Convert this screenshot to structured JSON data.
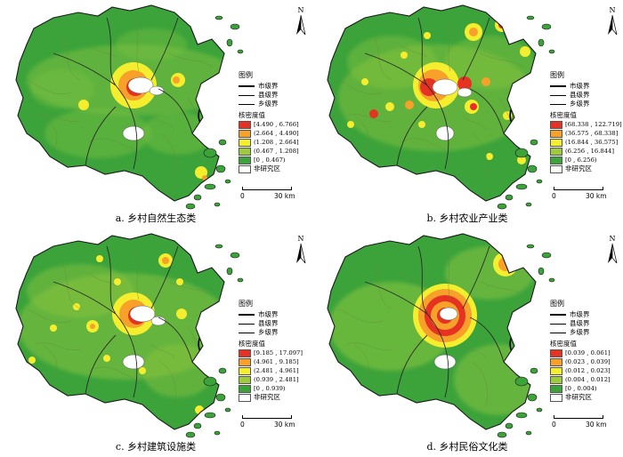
{
  "north_label": "N",
  "legend_common": {
    "title": "图例",
    "boundaries": [
      "市级界",
      "县级界",
      "乡级界"
    ],
    "density_title": "核密度值",
    "non_study": "非研究区",
    "scale_zero": "0",
    "scale_dist": "30 km"
  },
  "panels": [
    {
      "caption": "a.  乡村自然生态类",
      "classes": [
        "[4.490 , 6.766]",
        "(2.664 , 4.490]",
        "(1.208 , 2.664]",
        "(0.467 , 1.208]",
        "[0 , 0.467)"
      ],
      "colors": [
        "#e53222",
        "#f7a12a",
        "#f4ee2e",
        "#9dcb3d",
        "#3ba33a"
      ],
      "hotspots": "ecology"
    },
    {
      "caption": "b.  乡村农业产业类",
      "classes": [
        "[68.338 , 122.719]",
        "(36.575 , 68.338]",
        "(16.844 , 36.575]",
        "(6.256 , 16.844]",
        "[0 , 6.256)"
      ],
      "colors": [
        "#e53222",
        "#f7a12a",
        "#f4ee2e",
        "#9dcb3d",
        "#3ba33a"
      ],
      "hotspots": "agriculture"
    },
    {
      "caption": "c.  乡村建筑设施类",
      "classes": [
        "[9.185 , 17.097]",
        "(4.961 , 9.185]",
        "(2.481 , 4.961]",
        "(0.939 , 2.481]",
        "[0 , 0.939)"
      ],
      "colors": [
        "#e53222",
        "#f7a12a",
        "#f4ee2e",
        "#9dcb3d",
        "#3ba33a"
      ],
      "hotspots": "building"
    },
    {
      "caption": "d.  乡村民俗文化类",
      "classes": [
        "[0.039 , 0.061]",
        "(0.023 , 0.039]",
        "(0.012 , 0.023]",
        "(0.004 , 0.012]",
        "[0 , 0.004)"
      ],
      "colors": [
        "#e53222",
        "#f7a12a",
        "#f4ee2e",
        "#9dcb3d",
        "#3ba33a"
      ],
      "hotspots": "folk"
    }
  ]
}
